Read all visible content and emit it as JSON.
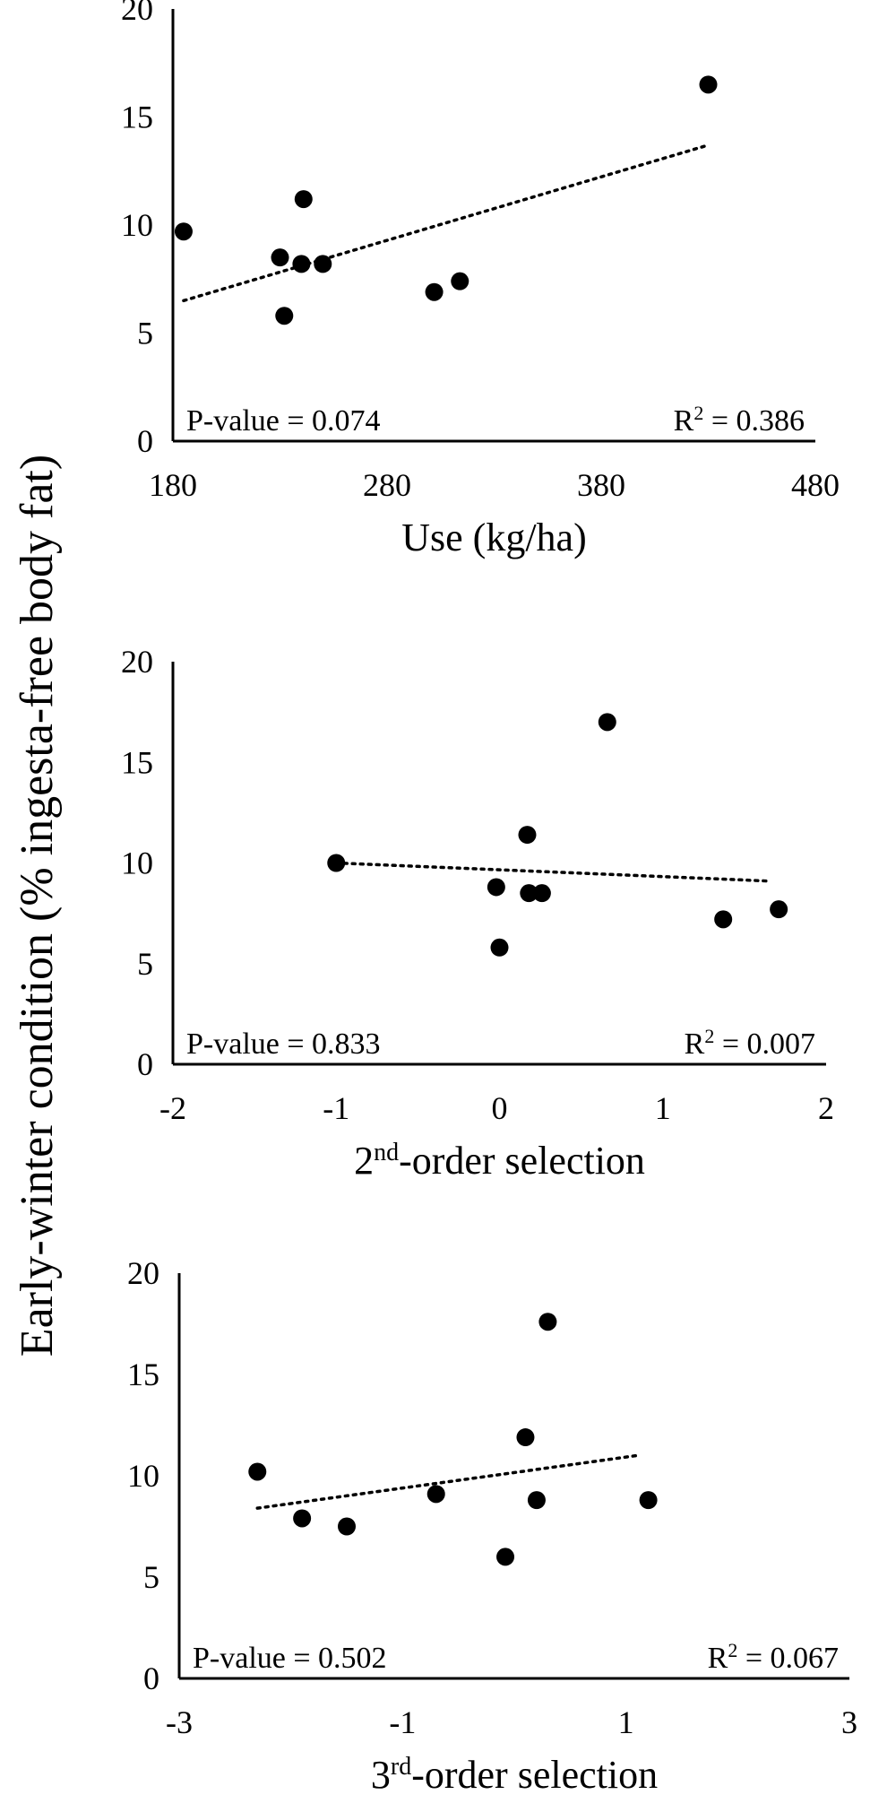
{
  "figure": {
    "ylabel": "Early-winter condition (% ingesta-free body fat)"
  },
  "chart_data": [
    {
      "type": "scatter",
      "xlabel": "Use (kg/ha)",
      "xlabel_main": "Use (kg/ha)",
      "xlabel_sup": "",
      "xlabel_rest": "",
      "xlim": [
        180,
        480
      ],
      "ylim": [
        0,
        20
      ],
      "xticks": [
        180,
        280,
        380,
        480
      ],
      "yticks": [
        0,
        5,
        10,
        15,
        20
      ],
      "points": [
        {
          "x": 185,
          "y": 9.7
        },
        {
          "x": 230,
          "y": 8.5
        },
        {
          "x": 232,
          "y": 5.8
        },
        {
          "x": 240,
          "y": 8.2
        },
        {
          "x": 241,
          "y": 11.2
        },
        {
          "x": 250,
          "y": 8.2
        },
        {
          "x": 302,
          "y": 6.9
        },
        {
          "x": 314,
          "y": 7.4
        },
        {
          "x": 430,
          "y": 16.5
        }
      ],
      "trendline": {
        "x": [
          185,
          430
        ],
        "y": [
          6.5,
          13.7
        ],
        "style": "dotted"
      },
      "pvalue": "P-value = 0.074",
      "r2_label": "R",
      "r2_sup": "2",
      "r2_value": " = 0.386",
      "grid": false,
      "legend": "none"
    },
    {
      "type": "scatter",
      "xlabel": "2nd-order selection",
      "xlabel_main": "2",
      "xlabel_sup": "nd",
      "xlabel_rest": "-order selection",
      "xlim": [
        -2,
        2
      ],
      "ylim": [
        0,
        20
      ],
      "xticks": [
        -2,
        -1,
        0,
        1,
        2
      ],
      "yticks": [
        0,
        5,
        10,
        15,
        20
      ],
      "points": [
        {
          "x": -1.0,
          "y": 10.0
        },
        {
          "x": -0.02,
          "y": 8.8
        },
        {
          "x": 0.0,
          "y": 5.8
        },
        {
          "x": 0.17,
          "y": 11.4
        },
        {
          "x": 0.18,
          "y": 8.5
        },
        {
          "x": 0.26,
          "y": 8.5
        },
        {
          "x": 0.66,
          "y": 17.0
        },
        {
          "x": 1.37,
          "y": 7.2
        },
        {
          "x": 1.71,
          "y": 7.7
        }
      ],
      "trendline": {
        "x": [
          -1.0,
          1.65
        ],
        "y": [
          10.0,
          9.1
        ],
        "style": "dotted"
      },
      "pvalue": "P-value = 0.833",
      "r2_label": "R",
      "r2_sup": "2",
      "r2_value": " = 0.007",
      "grid": false,
      "legend": "none"
    },
    {
      "type": "scatter",
      "xlabel": "3rd-order selection",
      "xlabel_main": "3",
      "xlabel_sup": "rd",
      "xlabel_rest": "-order selection",
      "xlim": [
        -3,
        3
      ],
      "ylim": [
        0,
        20
      ],
      "xticks": [
        -3,
        -1,
        1,
        3
      ],
      "yticks": [
        0,
        5,
        10,
        15,
        20
      ],
      "points": [
        {
          "x": -2.3,
          "y": 10.2
        },
        {
          "x": -1.9,
          "y": 7.9
        },
        {
          "x": -1.5,
          "y": 7.5
        },
        {
          "x": -0.7,
          "y": 9.1
        },
        {
          "x": -0.08,
          "y": 6.0
        },
        {
          "x": 0.1,
          "y": 11.9
        },
        {
          "x": 0.2,
          "y": 8.8
        },
        {
          "x": 0.3,
          "y": 17.6
        },
        {
          "x": 1.2,
          "y": 8.8
        }
      ],
      "trendline": {
        "x": [
          -2.3,
          1.1
        ],
        "y": [
          8.4,
          11.0
        ],
        "style": "dotted"
      },
      "pvalue": "P-value = 0.502",
      "r2_label": "R",
      "r2_sup": "2",
      "r2_value": " = 0.067",
      "grid": false,
      "legend": "none"
    }
  ]
}
